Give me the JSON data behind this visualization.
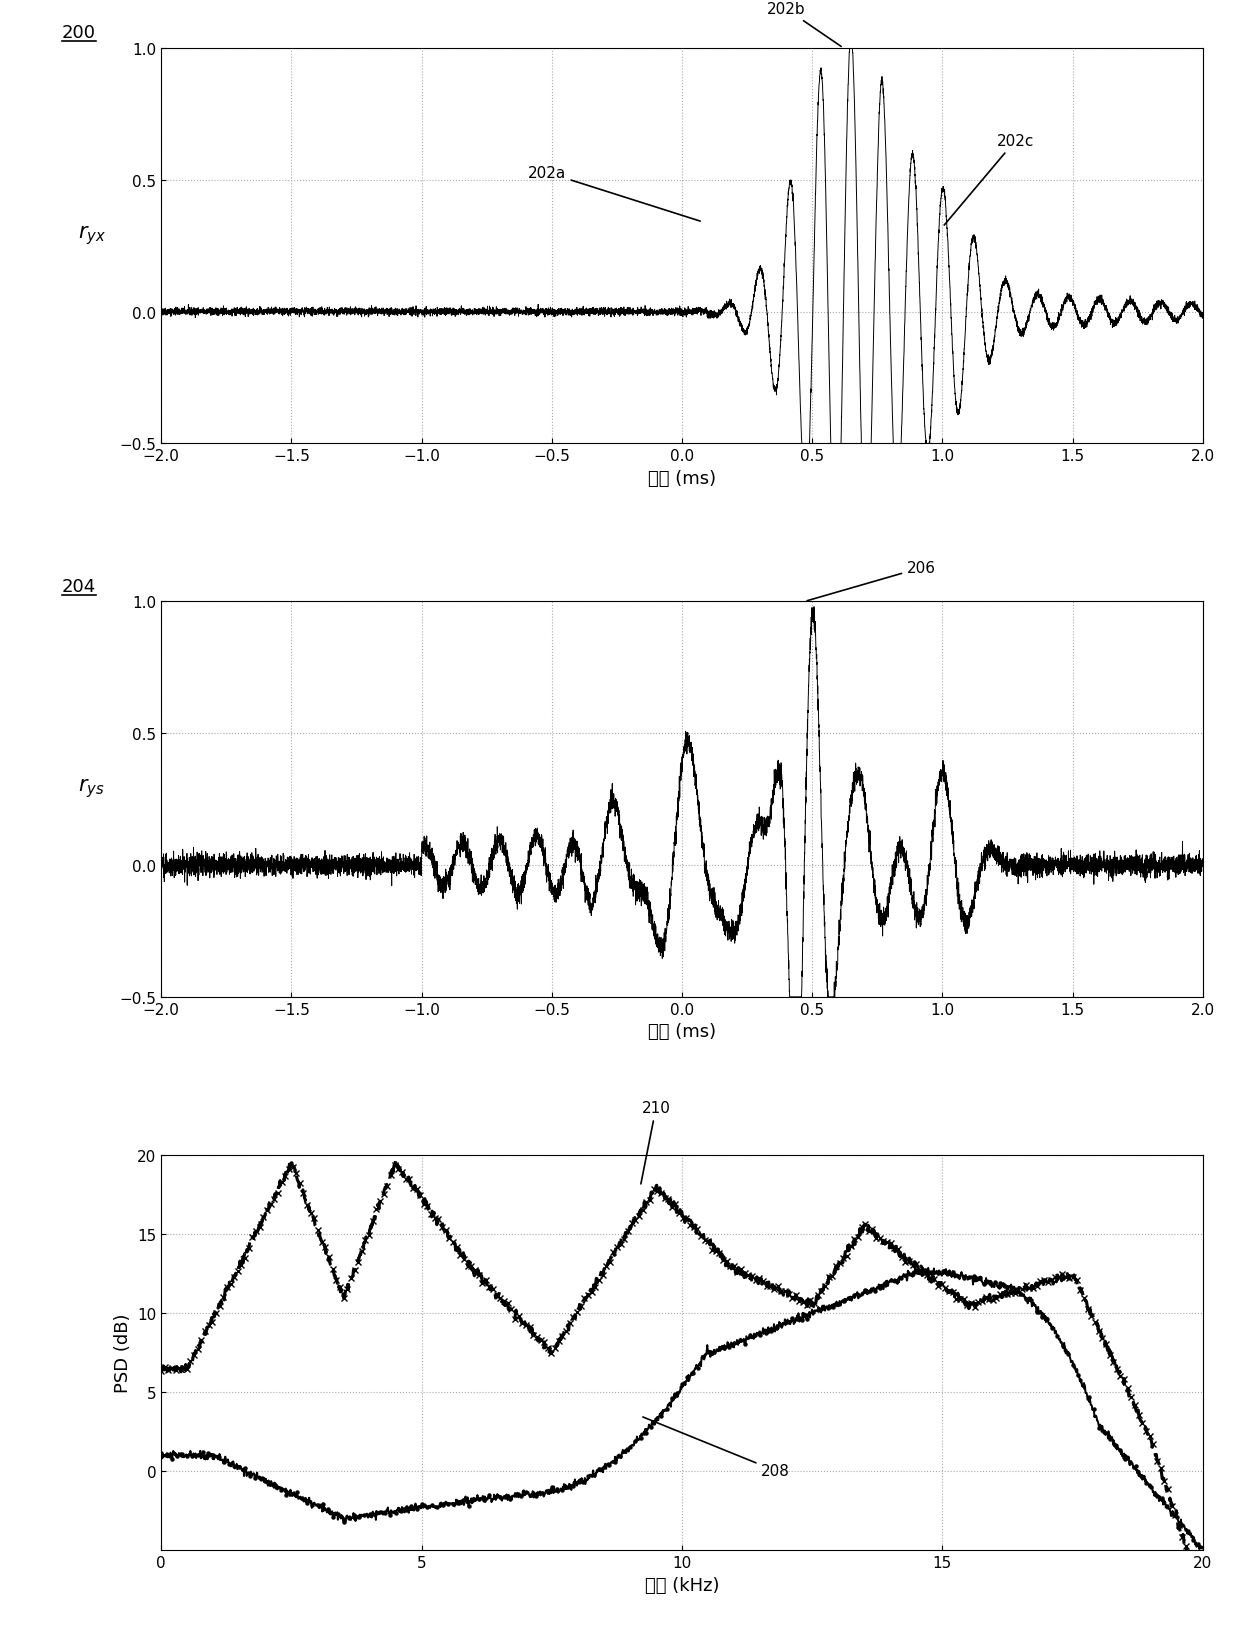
{
  "fig_width": 12.4,
  "fig_height": 16.33,
  "dpi": 100,
  "bg_color": "#ffffff",
  "plot1": {
    "label_id": "200",
    "ylabel": "$r_{yx}$",
    "xlabel": "滞后 (ms)",
    "xlim": [
      -2,
      2
    ],
    "ylim": [
      -0.5,
      1.0
    ],
    "yticks": [
      -0.5,
      0,
      0.5,
      1
    ],
    "xticks": [
      -2,
      -1.5,
      -1,
      -0.5,
      0,
      0.5,
      1,
      1.5,
      2
    ]
  },
  "plot2": {
    "label_id": "204",
    "ylabel": "$r_{ys}$",
    "xlabel": "滞后 (ms)",
    "xlim": [
      -2,
      2
    ],
    "ylim": [
      -0.5,
      1.0
    ],
    "yticks": [
      -0.5,
      0,
      0.5,
      1
    ],
    "xticks": [
      -2,
      -1.5,
      -1,
      -0.5,
      0,
      0.5,
      1,
      1.5,
      2
    ]
  },
  "plot3": {
    "ylabel": "PSD (dB)",
    "xlabel": "频率 (kHz)",
    "xlim": [
      0,
      20
    ],
    "ylim": [
      -5,
      20
    ],
    "yticks": [
      0,
      5,
      10,
      15,
      20
    ],
    "xticks": [
      0,
      5,
      10,
      15,
      20
    ]
  },
  "line_color": "#000000",
  "grid_color": "#aaaaaa"
}
